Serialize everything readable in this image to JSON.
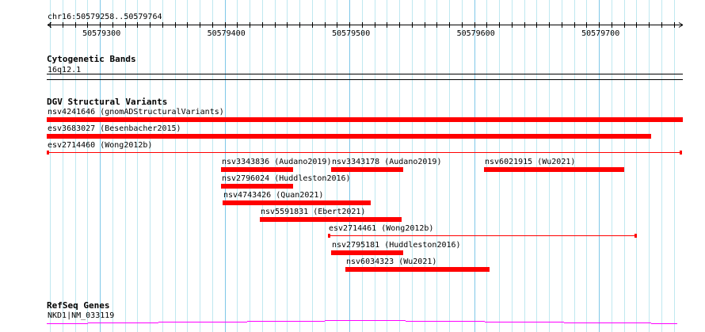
{
  "ruler": {
    "range_label": "chr16:50579258..50579764",
    "start": 50579258,
    "end": 50579764,
    "major_ticks": [
      "50579300",
      "50579400",
      "50579500",
      "50579600",
      "50579700"
    ]
  },
  "tracks": {
    "cytoband": {
      "title": "Cytogenetic Bands",
      "band": "16q12.1"
    },
    "dgv": {
      "title": "DGV Structural Variants",
      "color": "#ff0000",
      "features": [
        {
          "label": "nsv4241646 (gnomADStructuralVariants)",
          "start": 50579257,
          "end": 50579767,
          "row": 0,
          "style": "thick"
        },
        {
          "label": "esv3683027 (Besenbacher2015)",
          "start": 50579257,
          "end": 50579742,
          "row": 1,
          "style": "thick"
        },
        {
          "label": "esv2714460 (Wong2012b)",
          "start": 50579257,
          "end": 50579766,
          "row": 2,
          "style": "thin"
        },
        {
          "label": "nsv3343836 (Audano2019)",
          "start": 50579397,
          "end": 50579455,
          "row": 3,
          "style": "thick"
        },
        {
          "label": "nsv3343178 (Audano2019)",
          "start": 50579485,
          "end": 50579543,
          "row": 3,
          "style": "thick"
        },
        {
          "label": "nsv6021915 (Wu2021)",
          "start": 50579608,
          "end": 50579720,
          "row": 3,
          "style": "thick"
        },
        {
          "label": "nsv2796024 (Huddleston2016)",
          "start": 50579397,
          "end": 50579455,
          "row": 4,
          "style": "thick"
        },
        {
          "label": "nsv4743426 (Quan2021)",
          "start": 50579398,
          "end": 50579517,
          "row": 5,
          "style": "thick"
        },
        {
          "label": "nsv5591831 (Ebert2021)",
          "start": 50579428,
          "end": 50579542,
          "row": 6,
          "style": "thick"
        },
        {
          "label": "esv2714461 (Wong2012b)",
          "start": 50579483,
          "end": 50579730,
          "row": 7,
          "style": "thin"
        },
        {
          "label": "nsv2795181 (Huddleston2016)",
          "start": 50579485,
          "end": 50579543,
          "row": 8,
          "style": "thick"
        },
        {
          "label": "nsv6034323 (Wu2021)",
          "start": 50579497,
          "end": 50579612,
          "row": 9,
          "style": "thick"
        }
      ]
    },
    "refseq": {
      "title": "RefSeq Genes",
      "gene": "NKD1|NM_033119",
      "color": "#ff00ff"
    }
  }
}
